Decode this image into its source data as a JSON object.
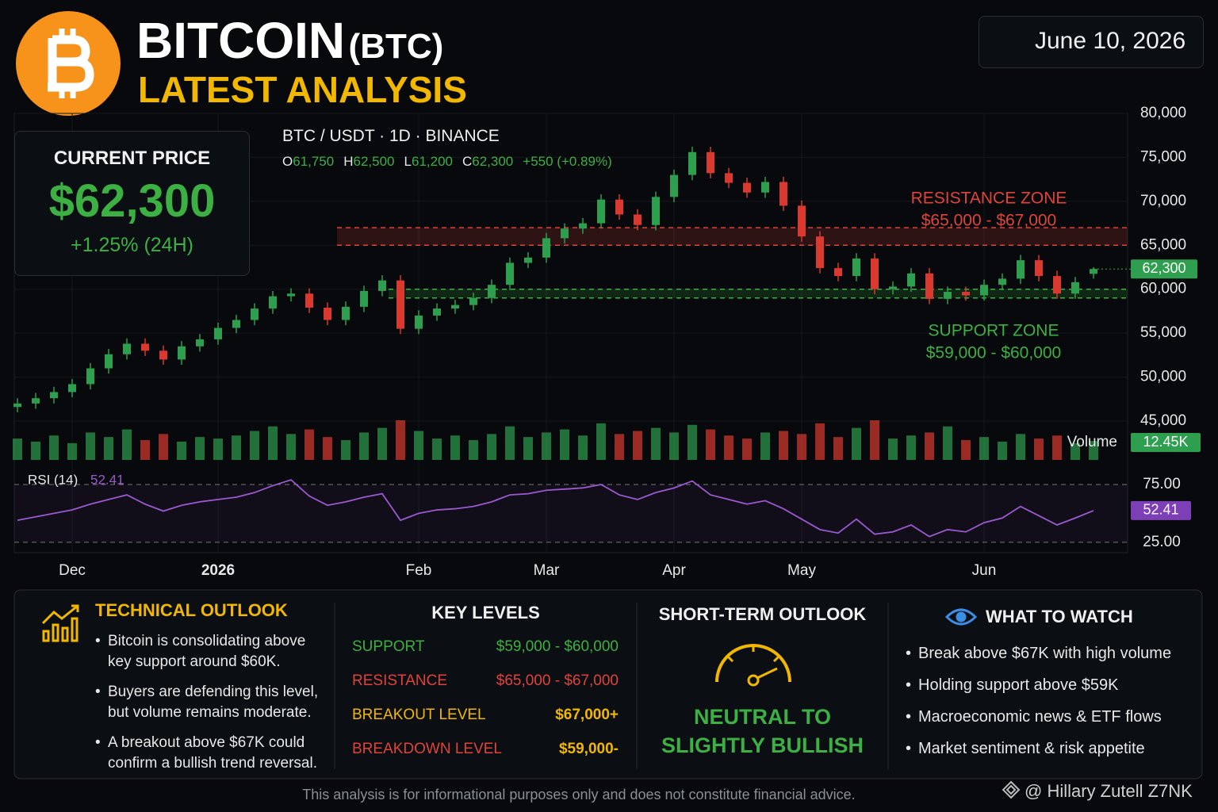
{
  "header": {
    "title": "BITCOIN",
    "ticker": "(BTC)",
    "subtitle": "LATEST ANALYSIS",
    "date": "June 10, 2026"
  },
  "price_card": {
    "label": "CURRENT PRICE",
    "price": "$62,300",
    "change": "+1.25% (24H)"
  },
  "chart_data": [
    {
      "type": "candlestick",
      "title": "BTC / USDT · 1D · BINANCE",
      "ohlc_legend": [
        {
          "key": "O",
          "value": "61,750"
        },
        {
          "key": "H",
          "value": "62,500"
        },
        {
          "key": "L",
          "value": "61,200"
        },
        {
          "key": "C",
          "value": "62,300"
        }
      ],
      "change_label": "+550 (+0.89%)",
      "open": [
        46600,
        47000,
        47600,
        48300,
        49200,
        51000,
        52600,
        53800,
        53000,
        52000,
        53500,
        54300,
        55600,
        56500,
        57800,
        59200,
        59500,
        57900,
        56500,
        58000,
        59800,
        61000,
        55500,
        57000,
        57800,
        58200,
        59000,
        60500,
        63000,
        63600,
        65800,
        66900,
        67500,
        70200,
        68500,
        67300,
        70500,
        73000,
        75600,
        73200,
        72100,
        71000,
        72200,
        69500,
        66000,
        62400,
        61500,
        63500,
        60000,
        60300,
        61800,
        58900,
        59700,
        59300,
        60500,
        61200,
        63300,
        61500,
        59500,
        61750
      ],
      "high": [
        47600,
        48200,
        48900,
        49800,
        51600,
        53200,
        54400,
        54400,
        53600,
        54100,
        54900,
        56200,
        57100,
        58400,
        59800,
        60100,
        60100,
        58500,
        58600,
        60400,
        61600,
        61600,
        57600,
        58400,
        58800,
        59600,
        61100,
        63600,
        64200,
        66400,
        67500,
        68100,
        70800,
        70800,
        69100,
        71100,
        73600,
        76200,
        76200,
        73800,
        72700,
        72800,
        72800,
        70100,
        66600,
        63000,
        64100,
        64100,
        60900,
        62400,
        62400,
        60300,
        60300,
        61100,
        61800,
        63900,
        63900,
        62100,
        61400,
        62500
      ],
      "low": [
        46000,
        46400,
        47000,
        47700,
        48600,
        50400,
        52000,
        52400,
        51400,
        51400,
        52900,
        53700,
        55000,
        55900,
        57200,
        58600,
        57300,
        55900,
        55900,
        57400,
        59200,
        54900,
        54900,
        56400,
        57200,
        57600,
        58400,
        59900,
        62400,
        63000,
        65200,
        66300,
        66900,
        67900,
        66700,
        66700,
        69900,
        72400,
        72600,
        71500,
        70400,
        70400,
        68900,
        65400,
        61800,
        60900,
        60900,
        59400,
        59400,
        59700,
        58300,
        58300,
        58700,
        58700,
        59900,
        60600,
        60900,
        58900,
        58900,
        61200
      ],
      "close": [
        47000,
        47600,
        48300,
        49200,
        51000,
        52600,
        53800,
        53000,
        52000,
        53500,
        54300,
        55600,
        56500,
        57800,
        59200,
        59500,
        57900,
        56500,
        58000,
        59800,
        61000,
        55500,
        57000,
        57800,
        58200,
        59000,
        60500,
        63000,
        63600,
        65800,
        66900,
        67500,
        70200,
        68500,
        67300,
        70500,
        73000,
        75600,
        73200,
        72100,
        71000,
        72200,
        69500,
        66000,
        62400,
        61500,
        63500,
        60000,
        60300,
        61800,
        58900,
        59700,
        59300,
        60500,
        61200,
        63300,
        61500,
        59500,
        60800,
        62300
      ],
      "up_color": "#2e9e4f",
      "down_color": "#d9392f",
      "ylim": [
        45000,
        80000
      ],
      "yticks": [
        {
          "value": 45000,
          "label": "45,000"
        },
        {
          "value": 50000,
          "label": "50,000"
        },
        {
          "value": 55000,
          "label": "55,000"
        },
        {
          "value": 60000,
          "label": "60,000"
        },
        {
          "value": 65000,
          "label": "65,000"
        },
        {
          "value": 70000,
          "label": "70,000"
        },
        {
          "value": 75000,
          "label": "75,000"
        },
        {
          "value": 80000,
          "label": "80,000"
        }
      ],
      "xticks": [
        {
          "value": 3,
          "label": "Dec"
        },
        {
          "value": 11,
          "label": "2026"
        },
        {
          "value": 22,
          "label": "Feb"
        },
        {
          "value": 29,
          "label": "Mar"
        },
        {
          "value": 36,
          "label": "Apr"
        },
        {
          "value": 43,
          "label": "May"
        },
        {
          "value": 53,
          "label": "Jun"
        }
      ],
      "current_price": {
        "value": 62300,
        "label": "62,300"
      },
      "zones": [
        {
          "name": "RESISTANCE ZONE",
          "range_label": "$65,000 - $67,000",
          "low": 65000,
          "high": 67000,
          "color": "#e0433a"
        },
        {
          "name": "SUPPORT ZONE",
          "range_label": "$59,000 - $60,000",
          "low": 59000,
          "high": 60000,
          "color": "#3cb043"
        }
      ],
      "grid": true
    },
    {
      "type": "bar",
      "title": "Volume",
      "values": [
        14,
        12,
        16,
        11,
        18,
        15,
        20,
        13,
        17,
        12,
        15,
        14,
        16,
        19,
        22,
        17,
        20,
        15,
        13,
        18,
        21,
        26,
        19,
        14,
        16,
        13,
        17,
        22,
        15,
        18,
        20,
        16,
        24,
        17,
        19,
        21,
        18,
        23,
        20,
        16,
        14,
        18,
        19,
        17,
        24,
        15,
        21,
        26,
        14,
        16,
        18,
        22,
        13,
        15,
        12,
        17,
        14,
        16,
        11,
        12.45
      ],
      "current": {
        "value": 12.45,
        "label": "12.45K"
      }
    },
    {
      "type": "line",
      "title": "RSI (14)",
      "color": "#9b59d0",
      "values": [
        44,
        47,
        50,
        53,
        58,
        62,
        66,
        58,
        52,
        57,
        60,
        62,
        64,
        68,
        74,
        79,
        65,
        57,
        60,
        64,
        67,
        44,
        50,
        53,
        54,
        56,
        60,
        66,
        67,
        70,
        71,
        72,
        75,
        66,
        62,
        68,
        72,
        78,
        66,
        62,
        58,
        61,
        54,
        45,
        36,
        33,
        45,
        32,
        34,
        40,
        30,
        36,
        34,
        42,
        46,
        56,
        48,
        40,
        46,
        52.41
      ],
      "ylim": [
        16,
        88
      ],
      "yticks": [
        {
          "value": 25,
          "label": "25.00"
        },
        {
          "value": 75,
          "label": "75.00"
        }
      ],
      "current": {
        "value": 52.41,
        "label": "52.41"
      }
    }
  ],
  "technical_outlook": {
    "title": "TECHNICAL OUTLOOK",
    "bullets": [
      "Bitcoin is consolidating above key support around $60K.",
      "Buyers are defending this level, but volume remains moderate.",
      "A breakout above $67K could confirm a bullish trend reversal."
    ]
  },
  "key_levels": {
    "title": "KEY LEVELS",
    "rows": [
      {
        "label": "SUPPORT",
        "value": "$59,000 - $60,000"
      },
      {
        "label": "RESISTANCE",
        "value": "$65,000 - $67,000"
      },
      {
        "label": "BREAKOUT LEVEL",
        "value": "$67,000+"
      },
      {
        "label": "BREAKDOWN LEVEL",
        "value": "$59,000-"
      }
    ]
  },
  "short_term_outlook": {
    "title": "SHORT-TERM OUTLOOK",
    "verdict": [
      "NEUTRAL TO",
      "SLIGHTLY BULLISH"
    ]
  },
  "what_to_watch": {
    "title": "WHAT TO WATCH",
    "items": [
      "Break above $67K with high volume",
      "Holding support above $59K",
      "Macroeconomic news & ETF flows",
      "Market sentiment & risk appetite"
    ]
  },
  "footer": {
    "disclaimer": "This analysis is for informational purposes only and does not constitute financial advice.",
    "watermark": "@ Hillary Zutell Z7NK"
  }
}
